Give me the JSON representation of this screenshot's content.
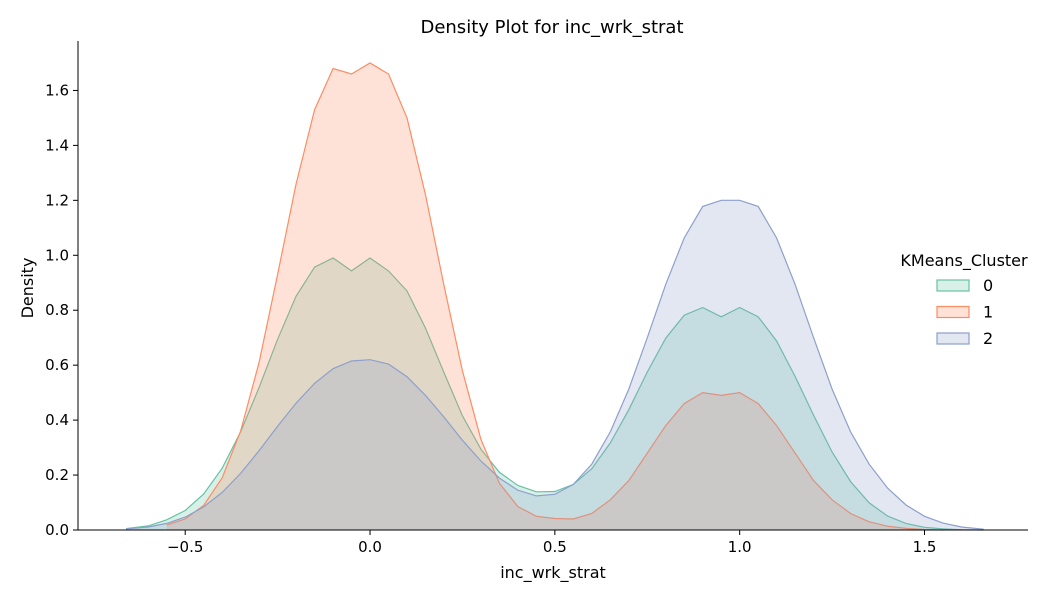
{
  "chart_data": {
    "type": "area",
    "title": "Density Plot for inc_wrk_strat",
    "xlabel": "inc_wrk_strat",
    "ylabel": "Density",
    "xlim": [
      -0.79,
      1.78
    ],
    "ylim": [
      0,
      1.78
    ],
    "x_ticks": [
      "−0.5",
      "0.0",
      "0.5",
      "1.0",
      "1.5"
    ],
    "x_tick_values": [
      -0.5,
      0.0,
      0.5,
      1.0,
      1.5
    ],
    "y_ticks": [
      "0.0",
      "0.2",
      "0.4",
      "0.6",
      "0.8",
      "1.0",
      "1.2",
      "1.4",
      "1.6"
    ],
    "y_tick_values": [
      0.0,
      0.2,
      0.4,
      0.6,
      0.8,
      1.0,
      1.2,
      1.4,
      1.6
    ],
    "grid": false,
    "legend": {
      "title": "KMeans_Cluster",
      "placement": "right"
    },
    "x": [
      -0.66,
      -0.6,
      -0.55,
      -0.5,
      -0.45,
      -0.4,
      -0.35,
      -0.3,
      -0.25,
      -0.2,
      -0.15,
      -0.1,
      -0.05,
      0.0,
      0.05,
      0.1,
      0.15,
      0.2,
      0.25,
      0.3,
      0.35,
      0.4,
      0.45,
      0.5,
      0.55,
      0.6,
      0.65,
      0.7,
      0.75,
      0.8,
      0.85,
      0.9,
      0.95,
      1.0,
      1.05,
      1.1,
      1.15,
      1.2,
      1.25,
      1.3,
      1.35,
      1.4,
      1.45,
      1.5,
      1.55,
      1.6,
      1.66
    ],
    "series": [
      {
        "name": "0",
        "color": "#66c2a5",
        "x_range": [
          -0.66,
          1.66
        ],
        "values": [
          0.005,
          0.015,
          0.037,
          0.071,
          0.131,
          0.225,
          0.357,
          0.519,
          0.694,
          0.851,
          0.957,
          0.99,
          0.943,
          0.99,
          0.943,
          0.87,
          0.735,
          0.573,
          0.416,
          0.294,
          0.21,
          0.162,
          0.139,
          0.14,
          0.166,
          0.223,
          0.317,
          0.438,
          0.575,
          0.698,
          0.782,
          0.81,
          0.776,
          0.81,
          0.776,
          0.688,
          0.559,
          0.418,
          0.284,
          0.176,
          0.099,
          0.051,
          0.024,
          0.01,
          0.004,
          0.001,
          0.0
        ]
      },
      {
        "name": "1",
        "color": "#fc8d62",
        "x_range": [
          -0.55,
          1.55
        ],
        "values": [
          null,
          null,
          0.018,
          0.04,
          0.09,
          0.19,
          0.36,
          0.61,
          0.93,
          1.26,
          1.53,
          1.68,
          1.66,
          1.7,
          1.66,
          1.5,
          1.22,
          0.89,
          0.58,
          0.33,
          0.17,
          0.085,
          0.05,
          0.042,
          0.04,
          0.06,
          0.11,
          0.18,
          0.28,
          0.38,
          0.46,
          0.5,
          0.49,
          0.5,
          0.46,
          0.38,
          0.28,
          0.18,
          0.11,
          0.06,
          0.03,
          0.014,
          0.006,
          0.002,
          0.0,
          null,
          null
        ]
      },
      {
        "name": "2",
        "color": "#8da0cb",
        "x_range": [
          -0.66,
          1.66
        ],
        "values": [
          0.004,
          0.011,
          0.024,
          0.047,
          0.084,
          0.137,
          0.206,
          0.289,
          0.378,
          0.462,
          0.534,
          0.587,
          0.615,
          0.62,
          0.604,
          0.558,
          0.49,
          0.411,
          0.327,
          0.251,
          0.189,
          0.145,
          0.124,
          0.13,
          0.166,
          0.24,
          0.357,
          0.513,
          0.7,
          0.894,
          1.063,
          1.178,
          1.2,
          1.2,
          1.178,
          1.063,
          0.894,
          0.7,
          0.513,
          0.357,
          0.24,
          0.153,
          0.091,
          0.05,
          0.025,
          0.011,
          0.003
        ]
      }
    ]
  }
}
